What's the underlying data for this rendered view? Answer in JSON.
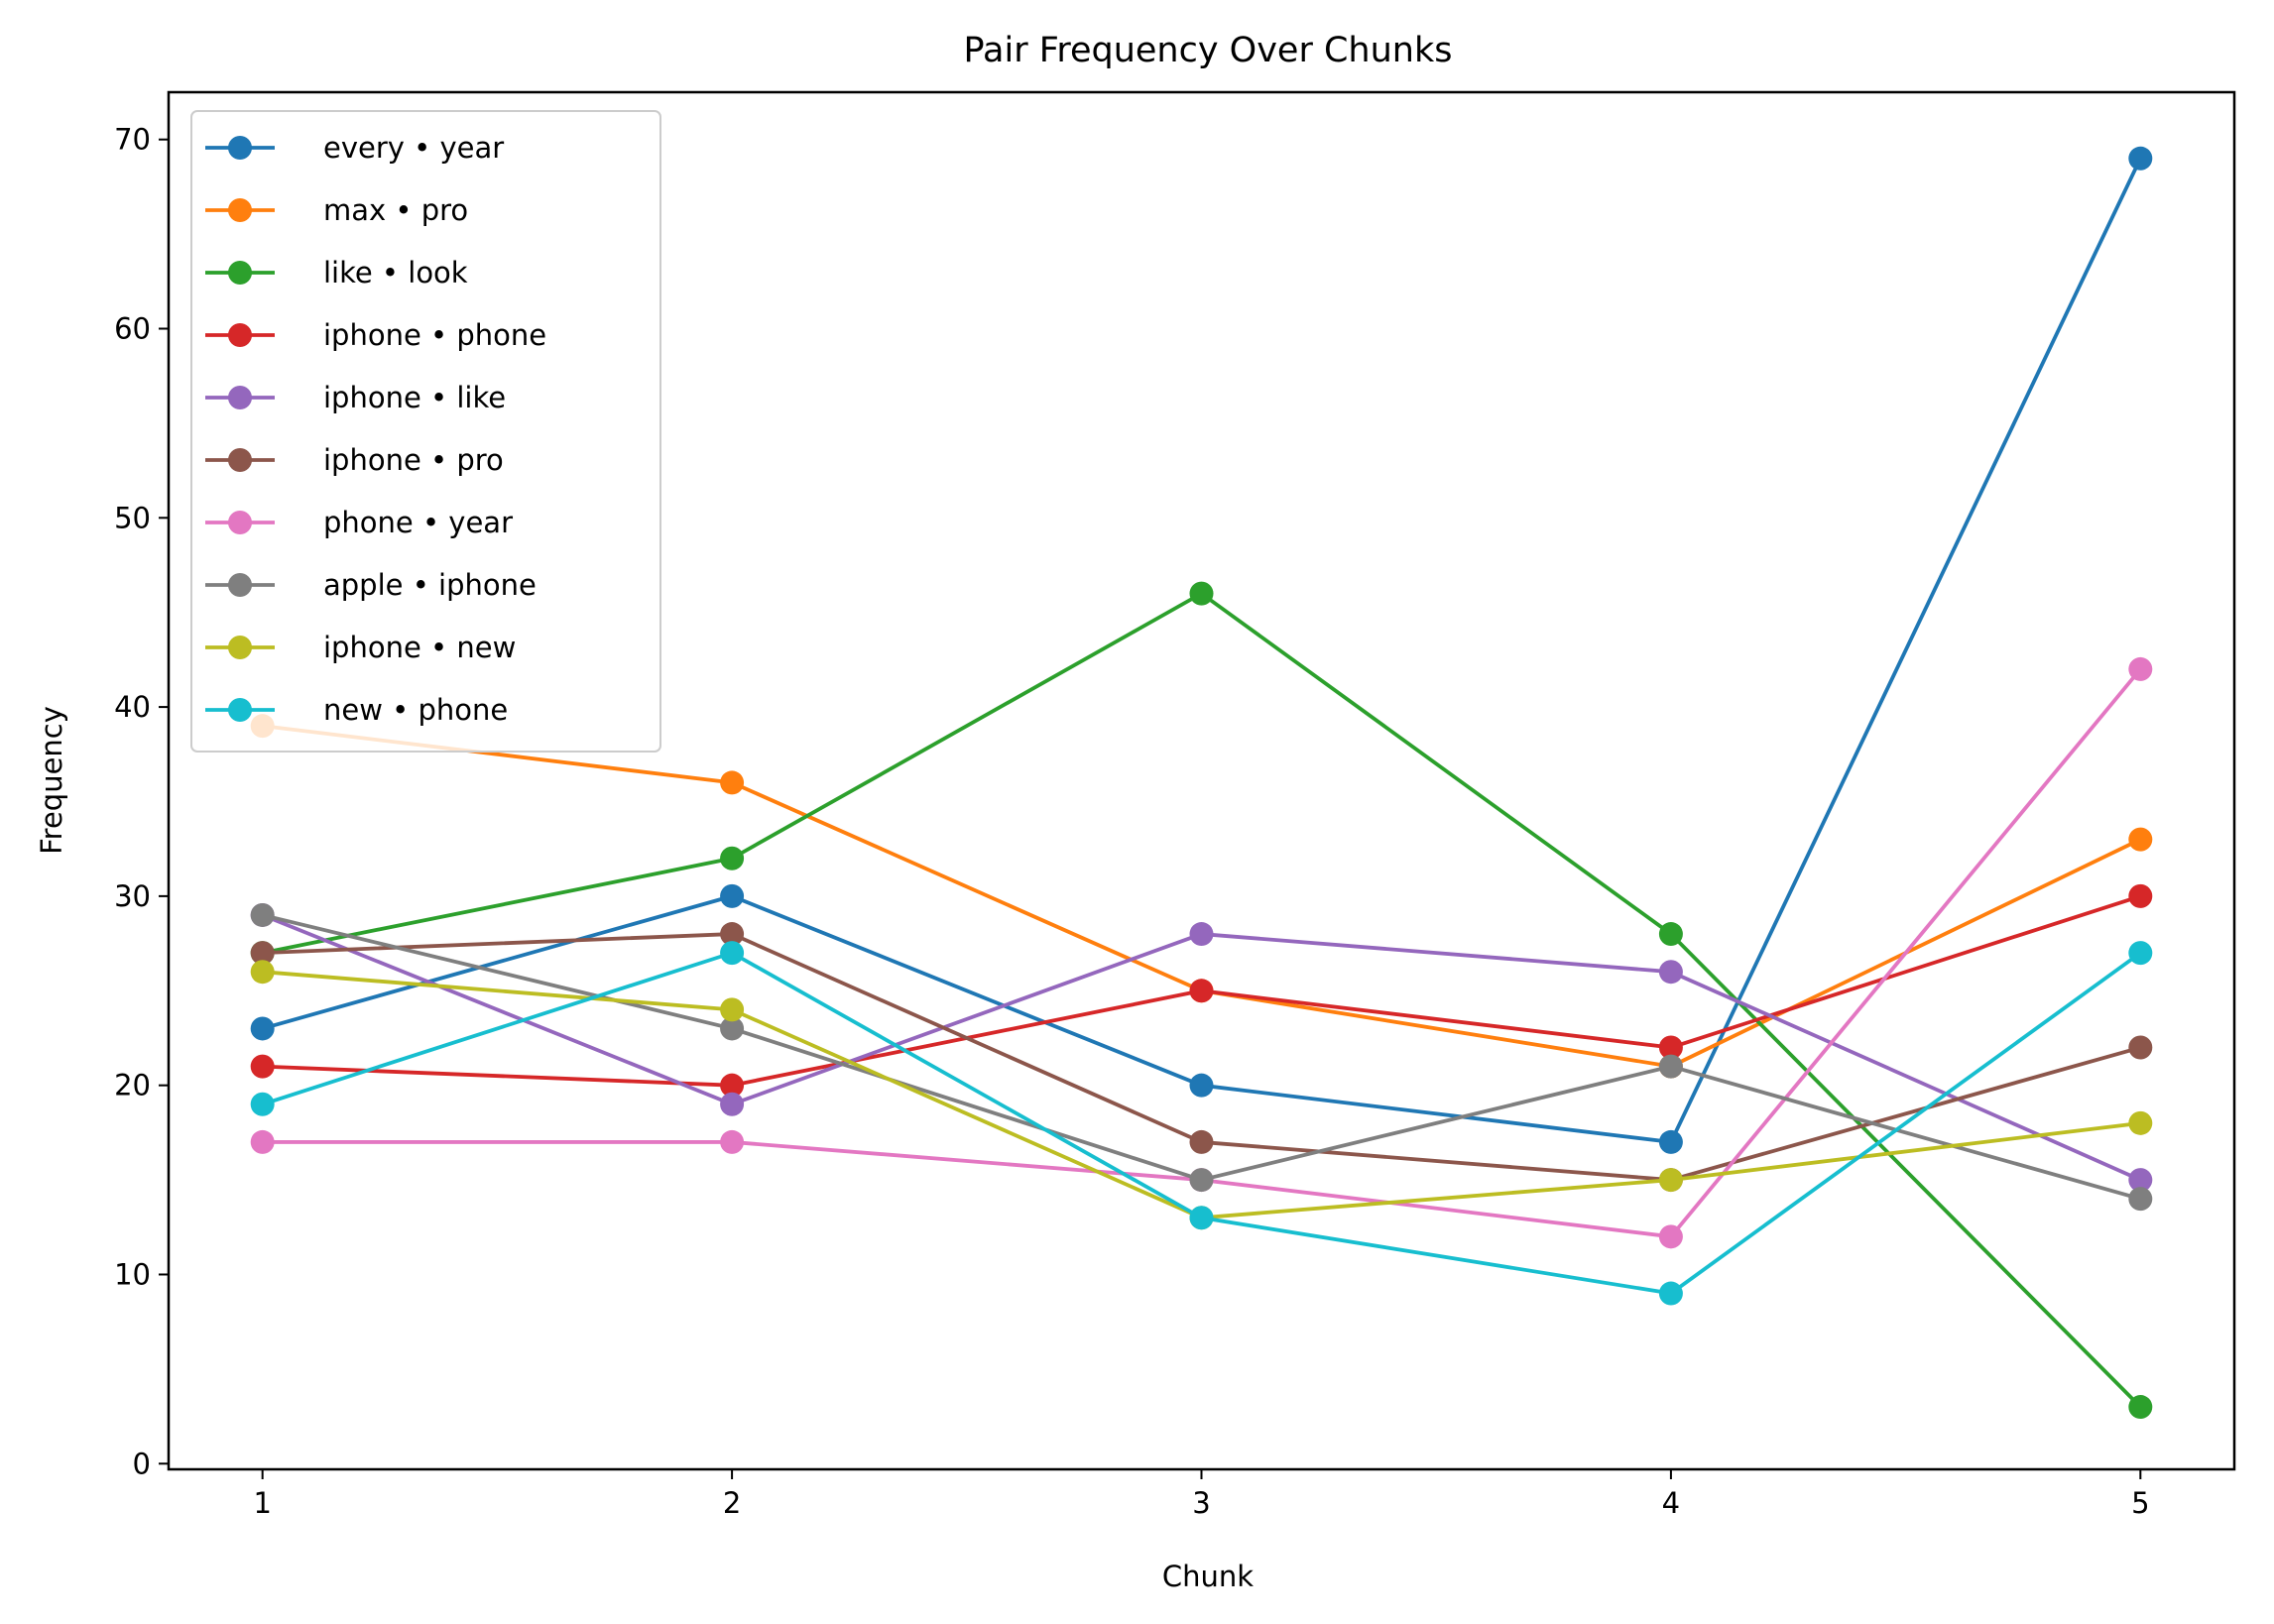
{
  "chart_data": {
    "type": "line",
    "title": "Pair Frequency Over Chunks",
    "xlabel": "Chunk",
    "ylabel": "Frequency",
    "x": [
      1,
      2,
      3,
      4,
      5
    ],
    "xticks": [
      "1",
      "2",
      "3",
      "4",
      "5"
    ],
    "yticks": [
      0,
      10,
      20,
      30,
      40,
      50,
      60,
      70
    ],
    "xlim": [
      0.8,
      5.2
    ],
    "ylim": [
      -0.3,
      72.5
    ],
    "grid": false,
    "legend_position": "top-left",
    "series": [
      {
        "name": "every • year",
        "color": "#1f77b4",
        "values": [
          23,
          30,
          20,
          17,
          69
        ]
      },
      {
        "name": "max • pro",
        "color": "#ff7f0e",
        "values": [
          39,
          36,
          25,
          21,
          33
        ]
      },
      {
        "name": "like • look",
        "color": "#2ca02c",
        "values": [
          27,
          32,
          46,
          28,
          3
        ]
      },
      {
        "name": "iphone • phone",
        "color": "#d62728",
        "values": [
          21,
          20,
          25,
          22,
          30
        ]
      },
      {
        "name": "iphone • like",
        "color": "#9467bd",
        "values": [
          29,
          19,
          28,
          26,
          15
        ]
      },
      {
        "name": "iphone • pro",
        "color": "#8c564b",
        "values": [
          27,
          28,
          17,
          15,
          22
        ]
      },
      {
        "name": "phone • year",
        "color": "#e377c2",
        "values": [
          17,
          17,
          15,
          12,
          42
        ]
      },
      {
        "name": "apple • iphone",
        "color": "#7f7f7f",
        "values": [
          29,
          23,
          15,
          21,
          14
        ]
      },
      {
        "name": "iphone • new",
        "color": "#bcbd22",
        "values": [
          26,
          24,
          13,
          15,
          18
        ]
      },
      {
        "name": "new • phone",
        "color": "#17becf",
        "values": [
          19,
          27,
          13,
          9,
          27
        ]
      }
    ]
  }
}
